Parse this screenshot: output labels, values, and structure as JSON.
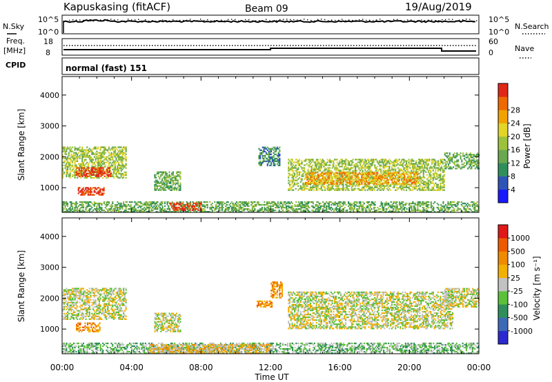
{
  "header": {
    "station": "Kapuskasing (fitACF)",
    "beam": "Beam 09",
    "date": "19/Aug/2019"
  },
  "panels": {
    "nsky_label": "N.Sky",
    "nsearch_label": "N.Search",
    "nsky_ticks": [
      "10^5",
      "10^0"
    ],
    "nsearch_ticks": [
      "10^5",
      "10^0"
    ],
    "freq_label": "Freq.",
    "freq_unit": "[MHz]",
    "freq_ticks": [
      "18",
      "8"
    ],
    "nave_label": "Nave",
    "nave_ticks": [
      "60",
      "0"
    ],
    "cpid_label": "CPID",
    "cpid_value": "normal (fast) 151"
  },
  "chart_data": [
    {
      "type": "heatmap",
      "name": "power",
      "ylabel": "Slant Range [km]",
      "xlabel": "Time UT",
      "xlim": [
        0,
        24
      ],
      "ylim": [
        200,
        4600
      ],
      "xticks": [
        "00:00",
        "04:00",
        "08:00",
        "12:00",
        "16:00",
        "20:00",
        "00:00"
      ],
      "yticks": [
        1000,
        2000,
        3000,
        4000
      ],
      "colorbar": {
        "label": "Power [dB]",
        "ticks": [
          "4",
          "8",
          "12",
          "16",
          "20",
          "24",
          "28"
        ],
        "colors": [
          "#1a1aff",
          "#2f54b8",
          "#2f8f5b",
          "#69a84f",
          "#9cc23d",
          "#e3d428",
          "#f2a200",
          "#ee6a00",
          "#e02818"
        ]
      },
      "regions": [
        {
          "t0": 0.0,
          "t1": 3.7,
          "r0": 1300,
          "r1": 2300,
          "level": 4
        },
        {
          "t0": 0.8,
          "t1": 2.8,
          "r0": 1350,
          "r1": 1650,
          "level": 8
        },
        {
          "t0": 0.9,
          "t1": 2.4,
          "r0": 750,
          "r1": 1000,
          "level": 8
        },
        {
          "t0": 0.0,
          "t1": 24.0,
          "r0": 200,
          "r1": 520,
          "level": 3
        },
        {
          "t0": 6.2,
          "t1": 8.0,
          "r0": 250,
          "r1": 500,
          "level": 8
        },
        {
          "t0": 5.3,
          "t1": 6.8,
          "r0": 900,
          "r1": 1500,
          "level": 3
        },
        {
          "t0": 11.3,
          "t1": 12.5,
          "r0": 1700,
          "r1": 2300,
          "level": 2
        },
        {
          "t0": 13.0,
          "t1": 22.0,
          "r0": 900,
          "r1": 1900,
          "level": 4
        },
        {
          "t0": 14.0,
          "t1": 20.5,
          "r0": 1100,
          "r1": 1500,
          "level": 6
        },
        {
          "t0": 22.0,
          "t1": 24.0,
          "r0": 1600,
          "r1": 2100,
          "level": 3
        }
      ]
    },
    {
      "type": "heatmap",
      "name": "velocity",
      "ylabel": "Slant Range [km]",
      "xlabel": "Time UT",
      "xlim": [
        0,
        24
      ],
      "ylim": [
        200,
        4600
      ],
      "xticks": [
        "00:00",
        "04:00",
        "08:00",
        "12:00",
        "16:00",
        "20:00",
        "00:00"
      ],
      "yticks": [
        1000,
        2000,
        3000,
        4000
      ],
      "colorbar": {
        "label": "Velocity [m s⁻¹]",
        "ticks": [
          "1000",
          "500",
          "100",
          "25",
          "-25",
          "-100",
          "-500",
          "-1000"
        ],
        "colors": [
          "#2a2ad0",
          "#3c6ab8",
          "#2e8f5a",
          "#5bc03a",
          "#c2c2c2",
          "#f2b000",
          "#f08a00",
          "#ee5a00",
          "#e01818"
        ]
      },
      "regions": [
        {
          "t0": 0.0,
          "t1": 3.7,
          "r0": 1300,
          "r1": 2300,
          "level": 4
        },
        {
          "t0": 0.8,
          "t1": 2.2,
          "r0": 900,
          "r1": 1200,
          "level": 6
        },
        {
          "t0": 0.0,
          "t1": 24.0,
          "r0": 200,
          "r1": 520,
          "level": 3
        },
        {
          "t0": 5.0,
          "t1": 12.0,
          "r0": 200,
          "r1": 500,
          "level": 5
        },
        {
          "t0": 5.3,
          "t1": 6.8,
          "r0": 900,
          "r1": 1500,
          "level": 4
        },
        {
          "t0": 11.2,
          "t1": 12.1,
          "r0": 1700,
          "r1": 1900,
          "level": 6
        },
        {
          "t0": 12.0,
          "t1": 12.7,
          "r0": 2000,
          "r1": 2500,
          "level": 6
        },
        {
          "t0": 13.0,
          "t1": 22.5,
          "r0": 1000,
          "r1": 2200,
          "level": 4
        },
        {
          "t0": 22.0,
          "t1": 24.0,
          "r0": 1700,
          "r1": 2300,
          "level": 4
        }
      ]
    }
  ]
}
